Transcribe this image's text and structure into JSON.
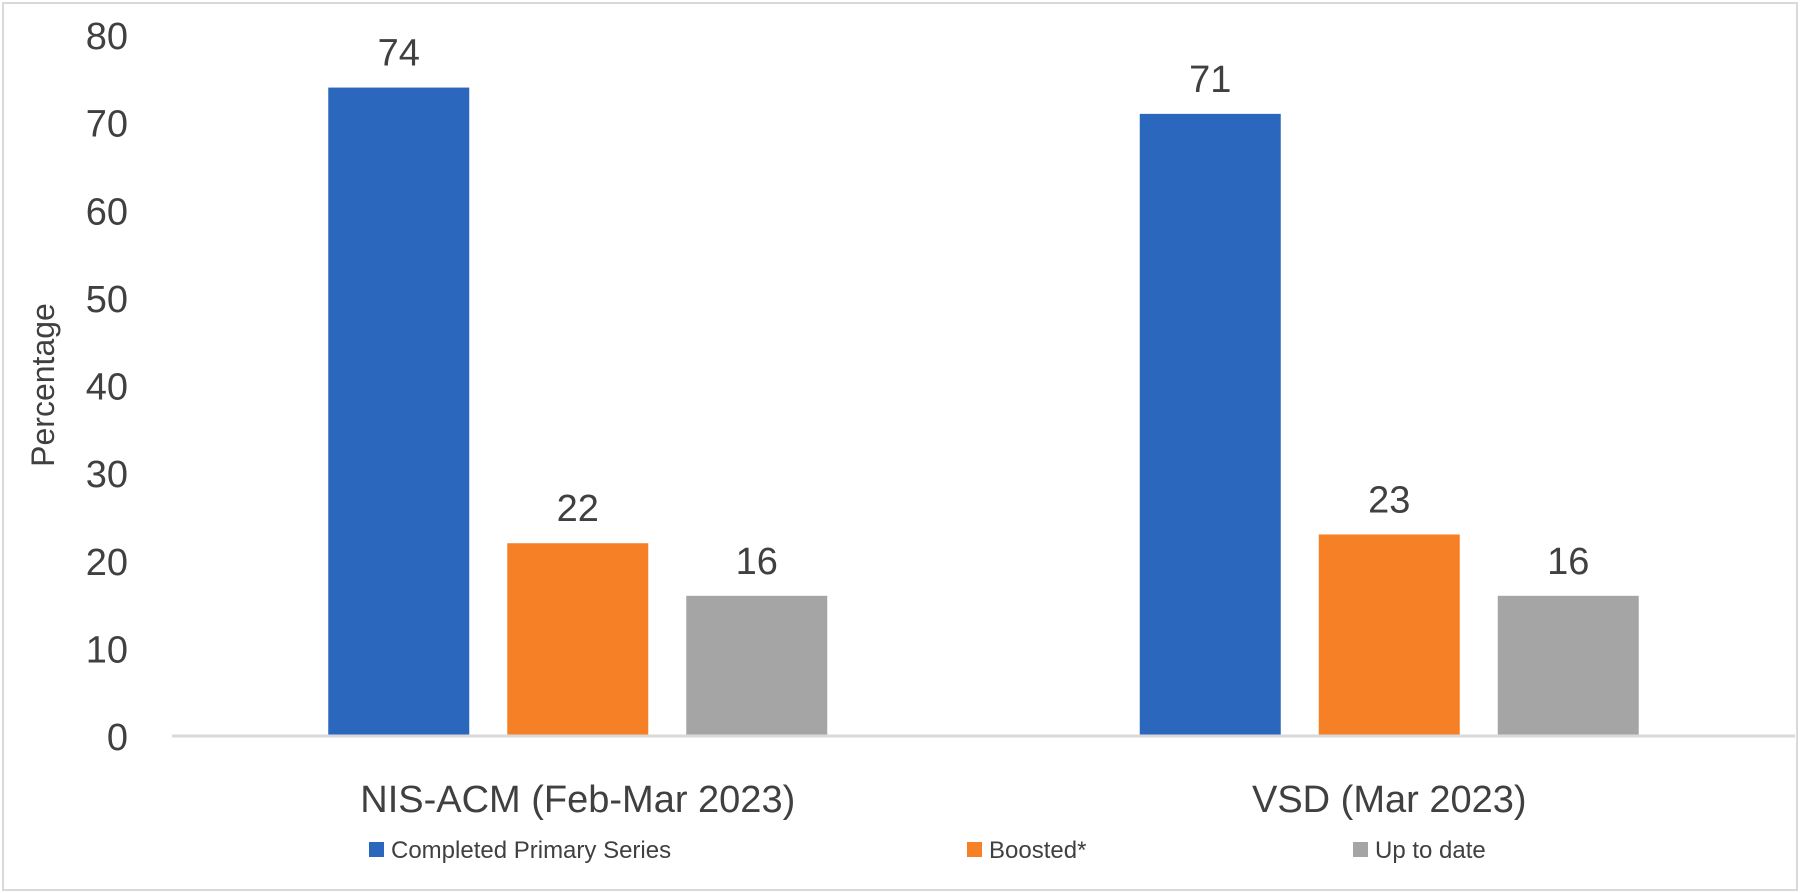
{
  "chart_data": {
    "type": "bar",
    "title": "",
    "xlabel": "",
    "ylabel": "Percentage",
    "ylim": [
      0,
      80
    ],
    "yticks": [
      0,
      10,
      20,
      30,
      40,
      50,
      60,
      70,
      80
    ],
    "grid": false,
    "legend_position": "bottom",
    "categories": [
      "NIS-ACM (Feb-Mar 2023)",
      "VSD (Mar 2023)"
    ],
    "series": [
      {
        "name": "Completed Primary Series",
        "color": "#2b67bd",
        "values": [
          74,
          71
        ]
      },
      {
        "name": "Boosted*",
        "color": "#f58025",
        "values": [
          22,
          23
        ]
      },
      {
        "name": "Up to date",
        "color": "#a5a5a5",
        "values": [
          16,
          16
        ]
      }
    ]
  }
}
